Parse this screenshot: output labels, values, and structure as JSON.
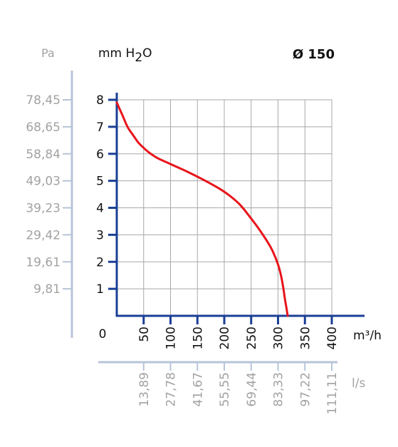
{
  "chart_data": {
    "type": "line",
    "title": "Ø 150",
    "ylabel": "mm H2O",
    "ylabel_parts": {
      "main": "mm H",
      "sub": "2",
      "tail": "O"
    },
    "ylabel_secondary": "Pa",
    "xlabel": "m³/h",
    "xlabel_secondary": "l/s",
    "origin_label": "0",
    "xlim": [
      0,
      400
    ],
    "ylim": [
      0,
      8
    ],
    "x_ticks": [
      "50",
      "100",
      "150",
      "200",
      "250",
      "300",
      "350",
      "400"
    ],
    "y_ticks": [
      "1",
      "2",
      "3",
      "4",
      "5",
      "6",
      "7",
      "8"
    ],
    "pa_ticks": [
      "9,81",
      "19,61",
      "29,42",
      "39,23",
      "49,03",
      "58,84",
      "68,65",
      "78,45"
    ],
    "ls_ticks": [
      "13,89",
      "27,78",
      "41,67",
      "55,55",
      "69,44",
      "83,33",
      "97,22",
      "111,11"
    ],
    "grid": true,
    "series": [
      {
        "color": "#e8141b",
        "x": [
          0,
          10,
          20,
          30,
          40,
          50,
          60,
          75,
          100,
          130,
          160,
          190,
          210,
          230,
          250,
          265,
          280,
          290,
          300,
          306,
          310,
          313,
          316,
          318
        ],
        "y": [
          7.9,
          7.45,
          7.0,
          6.7,
          6.42,
          6.22,
          6.05,
          5.85,
          5.62,
          5.35,
          5.05,
          4.72,
          4.45,
          4.1,
          3.6,
          3.2,
          2.75,
          2.4,
          1.9,
          1.45,
          1.0,
          0.6,
          0.25,
          0.0
        ]
      }
    ],
    "colors": {
      "axis": "#1a3f96",
      "grid": "#a8a8a8",
      "secondary_text": "#a2a2a2",
      "secondary_axis": "#b7c4d8",
      "curve": "#e8141b"
    }
  }
}
